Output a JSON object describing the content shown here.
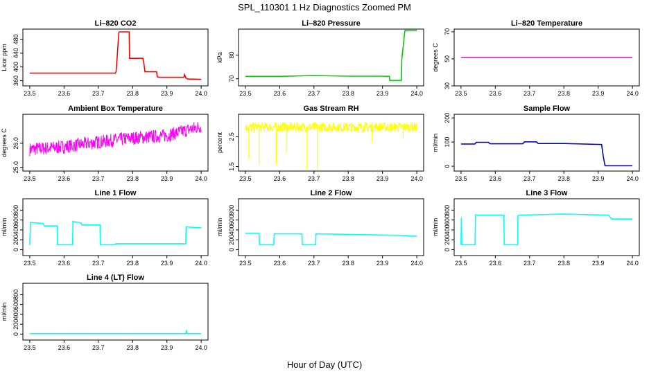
{
  "page": {
    "title": "SPL_110301  1 Hz Diagnostics Zoomed PM",
    "xlabel": "Hour of Day (UTC)"
  },
  "chart_data": [
    {
      "id": "co2",
      "type": "line",
      "title": "Li–820 CO2",
      "xlabel": "",
      "ylabel": "Licor ppm",
      "color": "#ff0000",
      "xlim": [
        23.48,
        24.02
      ],
      "ylim": [
        345,
        510
      ],
      "xticks": [
        23.5,
        23.6,
        23.7,
        23.8,
        23.9,
        24.0
      ],
      "yticks": [
        360,
        400,
        440,
        480
      ],
      "series": [
        {
          "x": [
            23.5,
            23.75,
            23.752,
            23.76,
            23.761,
            23.79,
            23.791,
            23.83,
            23.833,
            23.836,
            23.87,
            23.872,
            23.875,
            23.95,
            23.951,
            23.955,
            23.956,
            23.96,
            23.961,
            24.0
          ],
          "values": [
            382,
            382,
            387,
            500,
            502,
            502,
            425,
            425,
            410,
            386,
            386,
            372,
            370,
            370,
            378,
            370,
            367,
            366,
            365,
            364
          ]
        }
      ]
    },
    {
      "id": "pressure",
      "type": "line",
      "title": "Li–820 Pressure",
      "xlabel": "",
      "ylabel": "kPa",
      "color": "#00cc00",
      "xlim": [
        23.48,
        24.02
      ],
      "ylim": [
        67,
        91
      ],
      "xticks": [
        23.5,
        23.6,
        23.7,
        23.8,
        23.9,
        24.0
      ],
      "yticks": [
        70,
        80
      ],
      "series": [
        {
          "x": [
            23.5,
            23.6,
            23.7,
            23.8,
            23.9,
            23.92,
            23.921,
            23.955,
            23.956,
            23.965,
            23.966,
            24.0
          ],
          "values": [
            71,
            71,
            71.4,
            71.1,
            71.1,
            71,
            69.3,
            69.3,
            78,
            90,
            90.5,
            90.5
          ]
        }
      ]
    },
    {
      "id": "licor_temp",
      "type": "line",
      "title": "Li–820 Temperature",
      "xlabel": "",
      "ylabel": "degrees C",
      "color": "#ff00ff",
      "xlim": [
        23.48,
        24.02
      ],
      "ylim": [
        30,
        72
      ],
      "xticks": [
        23.5,
        23.6,
        23.7,
        23.8,
        23.9,
        24.0
      ],
      "yticks": [
        30,
        50,
        70
      ],
      "series": [
        {
          "x": [
            23.5,
            24.0
          ],
          "values": [
            50.9,
            50.9
          ]
        }
      ]
    },
    {
      "id": "box_temp",
      "type": "line",
      "title": "Ambient Box Temperature",
      "xlabel": "",
      "ylabel": "degrees C",
      "color": "#ff00ff",
      "xlim": [
        23.48,
        24.02
      ],
      "ylim": [
        24.85,
        27.2
      ],
      "xticks": [
        23.5,
        23.6,
        23.7,
        23.8,
        23.9,
        24.0
      ],
      "yticks": [
        25.0,
        26.0
      ],
      "series": [
        {
          "x": [
            23.5,
            23.6,
            23.7,
            23.8,
            23.9,
            24.0
          ],
          "values": [
            25.75,
            25.85,
            26.05,
            26.22,
            26.32,
            26.7
          ]
        }
      ],
      "noise": 0.28
    },
    {
      "id": "rh",
      "type": "line",
      "title": "Gas Stream RH",
      "xlabel": "",
      "ylabel": "percent",
      "color": "#ffff00",
      "xlim": [
        23.48,
        24.02
      ],
      "ylim": [
        1.35,
        3.25
      ],
      "xticks": [
        23.5,
        23.6,
        23.7,
        23.8,
        23.9,
        24.0
      ],
      "yticks": [
        1.5,
        2.5
      ],
      "series": [
        {
          "x": [
            23.5,
            24.0
          ],
          "values": [
            2.82,
            2.82
          ]
        }
      ],
      "noise": 0.16,
      "spikes": [
        {
          "x": 23.51,
          "min": 1.75
        },
        {
          "x": 23.54,
          "min": 1.55
        },
        {
          "x": 23.59,
          "min": 1.55
        },
        {
          "x": 23.62,
          "min": 1.95
        },
        {
          "x": 23.68,
          "min": 1.4
        },
        {
          "x": 23.71,
          "min": 1.4
        },
        {
          "x": 23.87,
          "min": 2.3
        },
        {
          "x": 23.96,
          "min": 2.45
        }
      ]
    },
    {
      "id": "sample_flow",
      "type": "line",
      "title": "Sample Flow",
      "xlabel": "",
      "ylabel": "ml/min",
      "color": "#0000cc",
      "xlim": [
        23.48,
        24.02
      ],
      "ylim": [
        -20,
        215
      ],
      "xticks": [
        23.5,
        23.6,
        23.7,
        23.8,
        23.9,
        24.0
      ],
      "yticks": [
        0,
        100,
        200
      ],
      "series": [
        {
          "x": [
            23.5,
            23.54,
            23.545,
            23.58,
            23.585,
            23.68,
            23.685,
            23.72,
            23.725,
            23.8,
            23.91,
            23.915,
            23.92,
            24.0
          ],
          "values": [
            92,
            92,
            99,
            99,
            93,
            93,
            101,
            101,
            94,
            94,
            90,
            40,
            2,
            2
          ]
        }
      ]
    },
    {
      "id": "line1",
      "type": "line",
      "title": "Line 1 Flow",
      "xlabel": "",
      "ylabel": "ml/min",
      "color": "#00ffff",
      "xlim": [
        23.48,
        24.02
      ],
      "ylim": [
        -120,
        1030
      ],
      "xticks": [
        23.5,
        23.6,
        23.7,
        23.8,
        23.9,
        24.0
      ],
      "yticks": [
        0,
        200,
        400,
        600,
        800
      ],
      "series": [
        {
          "x": [
            23.5,
            23.502,
            23.503,
            23.54,
            23.542,
            23.58,
            23.581,
            23.625,
            23.626,
            23.65,
            23.652,
            23.705,
            23.706,
            23.75,
            23.751,
            23.955,
            23.956,
            24.0
          ],
          "values": [
            100,
            550,
            550,
            530,
            480,
            480,
            100,
            100,
            570,
            540,
            500,
            500,
            100,
            100,
            120,
            120,
            460,
            440
          ]
        }
      ]
    },
    {
      "id": "line2",
      "type": "line",
      "title": "Line 2 Flow",
      "xlabel": "",
      "ylabel": "ml/min",
      "color": "#00ffff",
      "xlim": [
        23.48,
        24.02
      ],
      "ylim": [
        -120,
        1030
      ],
      "xticks": [
        23.5,
        23.6,
        23.7,
        23.8,
        23.9,
        24.0
      ],
      "yticks": [
        0,
        200,
        400,
        600,
        800
      ],
      "series": [
        {
          "x": [
            23.5,
            23.54,
            23.541,
            23.583,
            23.584,
            23.665,
            23.666,
            23.705,
            23.706,
            23.96,
            24.0
          ],
          "values": [
            330,
            330,
            100,
            100,
            320,
            320,
            100,
            100,
            320,
            290,
            270
          ]
        }
      ]
    },
    {
      "id": "line3",
      "type": "line",
      "title": "Line 3 Flow",
      "xlabel": "",
      "ylabel": "ml/min",
      "color": "#00ffff",
      "xlim": [
        23.48,
        24.02
      ],
      "ylim": [
        -120,
        1030
      ],
      "xticks": [
        23.5,
        23.6,
        23.7,
        23.8,
        23.9,
        24.0
      ],
      "yticks": [
        0,
        200,
        400,
        600,
        800
      ],
      "series": [
        {
          "x": [
            23.5,
            23.501,
            23.502,
            23.503,
            23.541,
            23.542,
            23.55,
            23.625,
            23.626,
            23.665,
            23.666,
            23.675,
            23.8,
            23.93,
            23.94,
            24.0
          ],
          "values": [
            100,
            650,
            100,
            100,
            100,
            700,
            700,
            700,
            100,
            100,
            690,
            700,
            720,
            700,
            620,
            620
          ]
        }
      ]
    },
    {
      "id": "line4",
      "type": "line",
      "title": "Line 4 (LT) Flow",
      "xlabel": "",
      "ylabel": "ml/min",
      "color": "#00ffff",
      "xlim": [
        23.48,
        24.02
      ],
      "ylim": [
        -120,
        1030
      ],
      "xticks": [
        23.5,
        23.6,
        23.7,
        23.8,
        23.9,
        24.0
      ],
      "yticks": [
        0,
        200,
        400,
        600,
        800
      ],
      "series": [
        {
          "x": [
            23.5,
            23.955,
            23.957,
            23.959,
            24.0
          ],
          "values": [
            10,
            10,
            80,
            10,
            10
          ]
        }
      ]
    }
  ]
}
